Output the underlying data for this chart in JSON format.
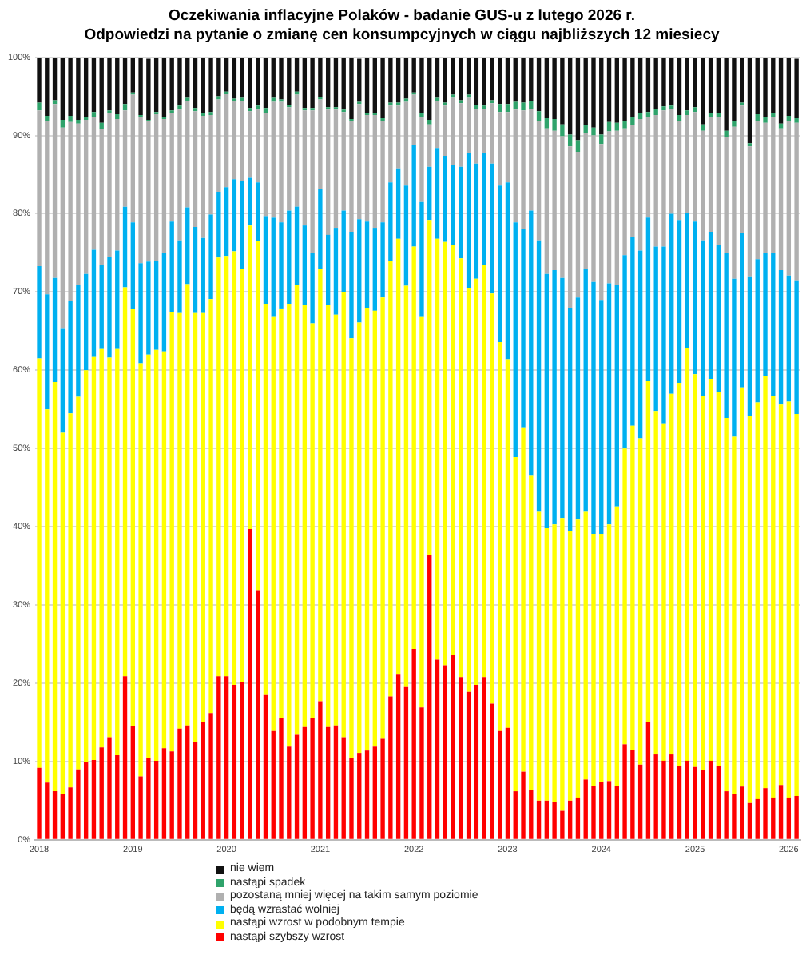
{
  "chart_data": {
    "type": "bar",
    "stacked": true,
    "title": "Oczekiwania inflacyjne Polaków - badanie GUS-u z lutego 2026 r.",
    "subtitle": "Odpowiedzi na pytanie o zmianę cen konsumpcyjnych w ciągu najbliższych 12 miesiecy",
    "categories": [
      "2018",
      null,
      null,
      null,
      null,
      null,
      null,
      null,
      null,
      null,
      null,
      null,
      "2019",
      null,
      null,
      null,
      null,
      null,
      null,
      null,
      null,
      null,
      null,
      null,
      "2020",
      null,
      null,
      null,
      null,
      null,
      null,
      null,
      null,
      null,
      null,
      null,
      "2021",
      null,
      null,
      null,
      null,
      null,
      null,
      null,
      null,
      null,
      null,
      null,
      "2022",
      null,
      null,
      null,
      null,
      null,
      null,
      null,
      null,
      null,
      null,
      null,
      "2023",
      null,
      null,
      null,
      null,
      null,
      null,
      null,
      null,
      null,
      null,
      null,
      "2024",
      null,
      null,
      null,
      null,
      null,
      null,
      null,
      null,
      null,
      null,
      null,
      "2025",
      null,
      null,
      null,
      null,
      null,
      null,
      null,
      null,
      null,
      null,
      null,
      "2026",
      null
    ],
    "series": [
      {
        "name": "nastąpi szybszy wzrost",
        "color": "#ff0000",
        "values": [
          9.2,
          7.3,
          6.2,
          5.9,
          6.7,
          9,
          9.9,
          10.2,
          11.8,
          13.1,
          10.8,
          20.9,
          14.5,
          8.1,
          10.5,
          10.1,
          11.7,
          11.3,
          14.2,
          14.6,
          12.5,
          15,
          16.2,
          20.9,
          20.9,
          19.8,
          20.1,
          39.7,
          31.9,
          18.5,
          13.9,
          15.6,
          11.9,
          13.4,
          14.4,
          15.6,
          17.7,
          14.4,
          14.6,
          13.1,
          10.4,
          11.1,
          11.4,
          11.9,
          12.9,
          18.3,
          21.1,
          19.5,
          24.4,
          16.9,
          36.4,
          23,
          22.3,
          23.6,
          20.8,
          18.9,
          19.8,
          20.8,
          17.4,
          13.9,
          14.3,
          6.2,
          8.7,
          6.4,
          5,
          5,
          4.8,
          3.7,
          5,
          5.4,
          7.7,
          6.9,
          7.4,
          7.5,
          6.9,
          12.2,
          11.5,
          9.6,
          15,
          10.9,
          10.1,
          10.9,
          9.4,
          10.1,
          9.3,
          8.9,
          10.1,
          9.4,
          6.2,
          5.9,
          6.8,
          4.7,
          5.2,
          6.6,
          5.4,
          7,
          5.4,
          5.6
        ]
      },
      {
        "name": "nastąpi wzrost w podobnym tempie",
        "color": "#ffff00",
        "values": [
          52.3,
          47.7,
          52.3,
          46.1,
          47.8,
          47.6,
          50.1,
          51.5,
          50.9,
          48.5,
          51.9,
          49.7,
          53.3,
          52.8,
          51.5,
          52.5,
          50.7,
          56.1,
          53.1,
          56.4,
          54.8,
          52.3,
          52.9,
          53.5,
          53.7,
          55.4,
          52.9,
          38.8,
          44.6,
          50,
          52.9,
          52.2,
          56.6,
          57.5,
          53.9,
          50.4,
          55.3,
          53.9,
          52.5,
          56.9,
          53.7,
          55,
          56.5,
          55.7,
          56.4,
          55.7,
          55.7,
          51.3,
          51.4,
          49.9,
          42.8,
          53.8,
          54.1,
          52.4,
          53.5,
          51.6,
          51.9,
          52.6,
          52.4,
          49.7,
          47.1,
          42.7,
          44,
          40.2,
          36.9,
          34.8,
          35.5,
          37.4,
          34.5,
          35.5,
          34.2,
          32.2,
          31.7,
          32.8,
          35.7,
          37.8,
          41.4,
          41.7,
          43.6,
          43.9,
          43.1,
          46.1,
          49,
          52.7,
          50.2,
          47.8,
          48.8,
          47.8,
          47.7,
          45.6,
          51,
          49.5,
          50.7,
          52.6,
          51.3,
          48.6,
          50.6,
          48.8
        ]
      },
      {
        "name": "będą wzrastać wolniej",
        "color": "#00b0f0",
        "values": [
          11.8,
          14.7,
          13.3,
          13.3,
          14.3,
          14.3,
          12.3,
          13.7,
          10.7,
          12.9,
          12.6,
          10.3,
          11.1,
          12.8,
          11.9,
          11.4,
          12.6,
          11.6,
          9.3,
          9.8,
          11,
          9.6,
          10.8,
          8.4,
          8.8,
          9.2,
          11.2,
          6.1,
          7.5,
          11.2,
          12.7,
          11.1,
          11.9,
          10,
          10.2,
          9,
          10.1,
          9,
          11.1,
          10.4,
          13.6,
          13.2,
          11.1,
          10.6,
          9.6,
          10,
          9,
          12.8,
          13,
          14.7,
          6.8,
          11.6,
          11,
          10.2,
          11.7,
          17.2,
          14.7,
          14.3,
          16.6,
          20,
          22.6,
          30,
          25.3,
          33.8,
          34.7,
          32.5,
          32.5,
          30.7,
          28.5,
          28.4,
          31.1,
          32.2,
          29.8,
          30.8,
          28.3,
          24.7,
          24.1,
          24,
          20.9,
          21,
          22.6,
          23,
          20.8,
          17.3,
          19.5,
          19.9,
          18.8,
          18.8,
          21.1,
          20.2,
          19.7,
          17.8,
          18.3,
          15.8,
          18.3,
          17.2,
          16.1,
          17.1
        ]
      },
      {
        "name": "pozostaną mniej więcej na takim samym poziomie",
        "color": "#b0b0b0",
        "values": [
          19.9,
          22.2,
          22.2,
          25.7,
          22.9,
          20.6,
          19.7,
          16.9,
          17.4,
          18.3,
          16.8,
          12.3,
          16.3,
          18.6,
          17.9,
          18.7,
          17.1,
          13.9,
          16.7,
          13.6,
          14.8,
          15.6,
          12.7,
          11.8,
          11.9,
          10,
          10.2,
          8.5,
          9.3,
          13.2,
          14.8,
          15.4,
          13.2,
          14.3,
          14.7,
          18.2,
          11.5,
          16,
          15.1,
          12.6,
          14.2,
          14.7,
          13.6,
          14.4,
          13,
          9.8,
          8,
          10.7,
          6.4,
          10.8,
          5.4,
          6,
          6.4,
          8.6,
          8.1,
          7.1,
          7,
          5.7,
          7.7,
          9.4,
          9,
          14.4,
          15.2,
          13,
          15.3,
          18.6,
          17.8,
          18.1,
          20.6,
          18.6,
          17.3,
          18.7,
          20,
          19.4,
          19.7,
          16.2,
          14.3,
          16.8,
          12.9,
          16.8,
          17.4,
          13.4,
          12.7,
          12.5,
          14,
          14,
          14.6,
          16.3,
          14.8,
          19.4,
          16.3,
          16.6,
          17.7,
          16.6,
          17.3,
          18.1,
          19.8,
          20.1
        ]
      },
      {
        "name": "nastąpi spadek",
        "color": "#2fa36b",
        "values": [
          1,
          0.6,
          0.5,
          1,
          0.8,
          0.5,
          0.4,
          0.7,
          0.8,
          0.4,
          0.6,
          0.8,
          0.3,
          0.3,
          0.2,
          0.3,
          0.3,
          0.3,
          0.5,
          0.4,
          0.4,
          0.3,
          0.4,
          0.4,
          0.3,
          0.3,
          0.4,
          0.4,
          0.5,
          0.6,
          0.5,
          0.3,
          0.3,
          0.4,
          0.3,
          0.3,
          0.3,
          0.3,
          0.3,
          0.3,
          0.2,
          0.3,
          0.3,
          0.3,
          0.3,
          0.4,
          0.4,
          0.4,
          0.3,
          0.5,
          0.6,
          0.4,
          0.4,
          0.4,
          0.4,
          0.4,
          0.5,
          0.4,
          0.4,
          1,
          1,
          1,
          1,
          1,
          1.2,
          1.3,
          1.5,
          1.5,
          1.5,
          1.5,
          1,
          1,
          1.2,
          1.2,
          1,
          1,
          1,
          0.8,
          0.6,
          0.8,
          0.5,
          0.4,
          0.7,
          0.6,
          0.6,
          0.8,
          0.6,
          0.6,
          0.8,
          0.8,
          0.4,
          0.4,
          0.8,
          0.8,
          0.6,
          0.6,
          0.6,
          0.6
        ]
      },
      {
        "name": "nie wiem",
        "color": "#111111",
        "values": [
          5.7,
          7.4,
          5.4,
          7.9,
          7.4,
          7.9,
          7.5,
          6.9,
          8.3,
          6.7,
          7.2,
          5.9,
          4.4,
          7.3,
          7.8,
          6.9,
          7.5,
          6.7,
          6.1,
          5.1,
          6.4,
          7.1,
          6.9,
          4.9,
          4.3,
          5.2,
          5.1,
          6.4,
          6.1,
          6.4,
          5.1,
          5.3,
          6,
          4.3,
          6.4,
          6.4,
          5,
          6.3,
          6.3,
          6.6,
          7.8,
          5.5,
          7,
          7,
          7.7,
          5.7,
          5.7,
          5.2,
          4.4,
          7.1,
          7.9,
          5.1,
          5.7,
          4.7,
          5.4,
          4.7,
          6,
          6.1,
          5.4,
          5.9,
          5.9,
          5.6,
          5.7,
          5.5,
          6.8,
          7.7,
          7.8,
          8.5,
          9.8,
          10.5,
          8.6,
          9,
          9.8,
          8.2,
          8.3,
          8,
          7.6,
          7,
          6.9,
          6.5,
          6.2,
          6.1,
          7.3,
          6.7,
          6.3,
          8.5,
          7,
          7,
          9.3,
          8,
          5.7,
          10.9,
          7.2,
          7.5,
          7,
          8.4,
          7.4,
          7.6
        ]
      }
    ],
    "ylim": [
      0,
      100
    ],
    "yticks": [
      {
        "value": 0,
        "label": "0%"
      },
      {
        "value": 10,
        "label": "10%"
      },
      {
        "value": 20,
        "label": "20%"
      },
      {
        "value": 30,
        "label": "30%"
      },
      {
        "value": 40,
        "label": "40%"
      },
      {
        "value": 50,
        "label": "50%"
      },
      {
        "value": 60,
        "label": "60%"
      },
      {
        "value": 70,
        "label": "70%"
      },
      {
        "value": 80,
        "label": "80%"
      },
      {
        "value": 90,
        "label": "90%"
      },
      {
        "value": 100,
        "label": "100%"
      }
    ],
    "grid": "y",
    "legend": "bottom"
  }
}
